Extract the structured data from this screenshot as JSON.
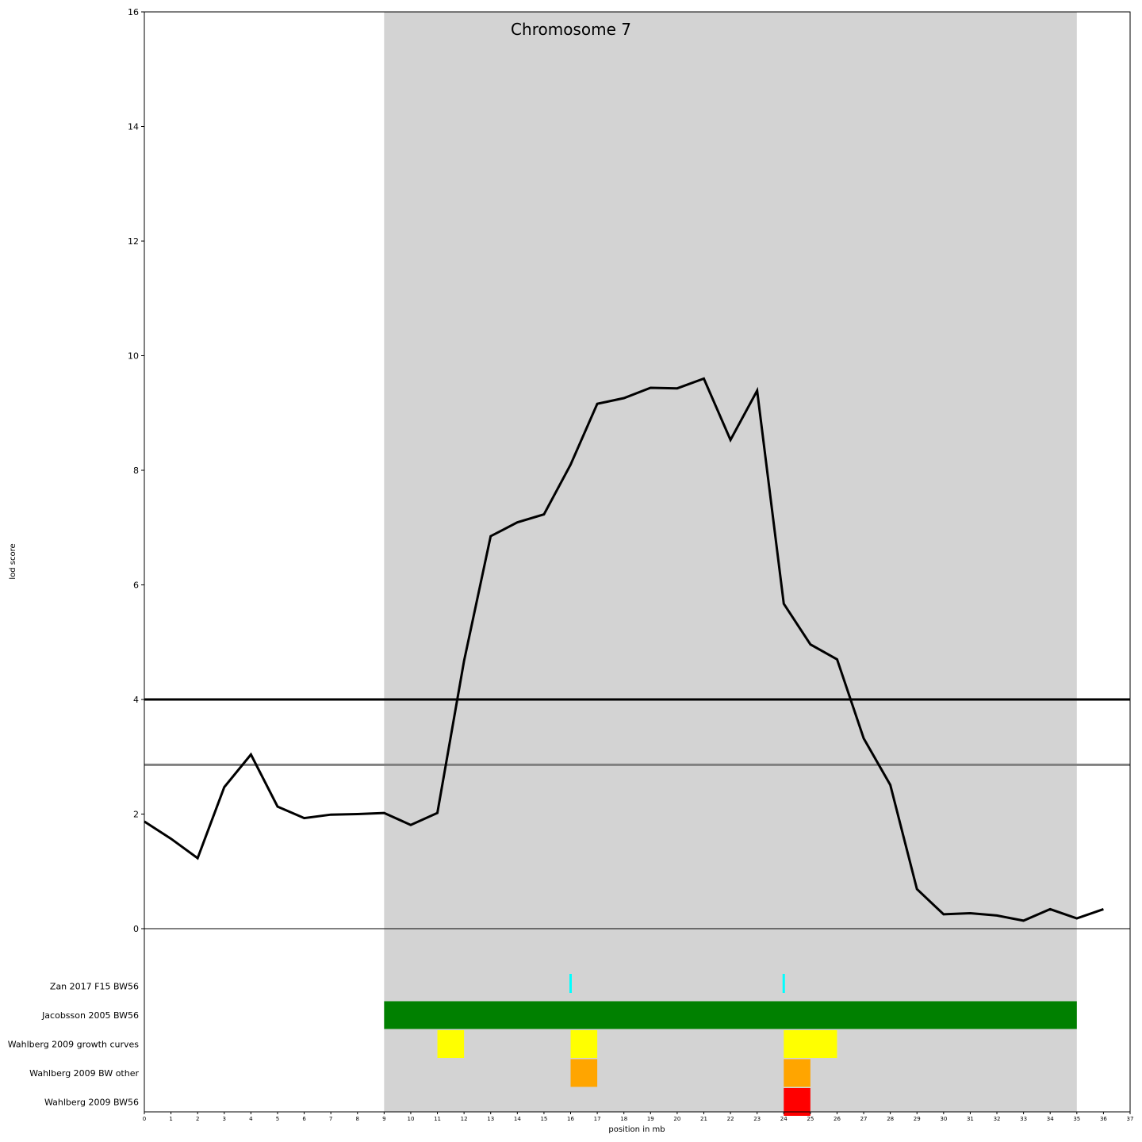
{
  "chart_data": {
    "type": "line",
    "title": "Chromosome 7",
    "xlabel": "position in mb",
    "ylabel": "lod score",
    "xlim": [
      0,
      37
    ],
    "ylim": [
      0,
      16
    ],
    "x_ticks": [
      0,
      1,
      2,
      3,
      4,
      5,
      6,
      7,
      8,
      9,
      10,
      11,
      12,
      13,
      14,
      15,
      16,
      17,
      18,
      19,
      20,
      21,
      22,
      23,
      24,
      25,
      26,
      27,
      28,
      29,
      30,
      31,
      32,
      33,
      34,
      35,
      36,
      37
    ],
    "y_ticks": [
      0,
      2,
      4,
      6,
      8,
      10,
      12,
      14,
      16
    ],
    "highlight_region": {
      "x_start": 9,
      "x_end": 35,
      "color": "#d3d3d3"
    },
    "thresholds": [
      {
        "value": 4.0,
        "color": "#000000"
      },
      {
        "value": 2.86,
        "color": "#808080"
      }
    ],
    "series": [
      {
        "color": "#000000",
        "x": [
          0,
          1,
          2,
          3,
          4,
          5,
          6,
          7,
          8,
          9,
          10,
          11,
          12,
          13,
          14,
          15,
          16,
          17,
          18,
          19,
          20,
          21,
          22,
          23,
          24,
          25,
          26,
          27,
          28,
          29,
          30,
          31,
          32,
          33,
          34,
          35,
          36
        ],
        "y": [
          1.87,
          1.57,
          1.23,
          2.47,
          3.04,
          2.13,
          1.93,
          1.99,
          2.0,
          2.02,
          1.81,
          2.02,
          4.67,
          6.85,
          7.09,
          7.23,
          8.1,
          9.16,
          9.26,
          9.44,
          9.43,
          9.6,
          8.53,
          9.39,
          5.67,
          4.96,
          4.7,
          3.32,
          2.51,
          0.69,
          0.25,
          0.27,
          0.23,
          0.14,
          0.34,
          0.18,
          0.34
        ]
      }
    ],
    "tracks": [
      {
        "label": "Zan 2017 F15 BW56",
        "markers": [
          16,
          24
        ],
        "color": "#00ffff"
      },
      {
        "label": "Jacobsson 2005 BW56",
        "intervals": [
          [
            9,
            35
          ]
        ],
        "color": "#008000"
      },
      {
        "label": "Wahlberg 2009 growth curves",
        "intervals": [
          [
            11,
            12
          ],
          [
            16,
            17
          ],
          [
            24,
            26
          ]
        ],
        "color": "#ffff00"
      },
      {
        "label": "Wahlberg 2009 BW other",
        "intervals": [
          [
            16,
            17
          ],
          [
            24,
            25
          ]
        ],
        "color": "#ffa500"
      },
      {
        "label": "Wahlberg 2009 BW56",
        "intervals": [
          [
            24,
            25
          ]
        ],
        "color": "#ff0000"
      }
    ]
  }
}
